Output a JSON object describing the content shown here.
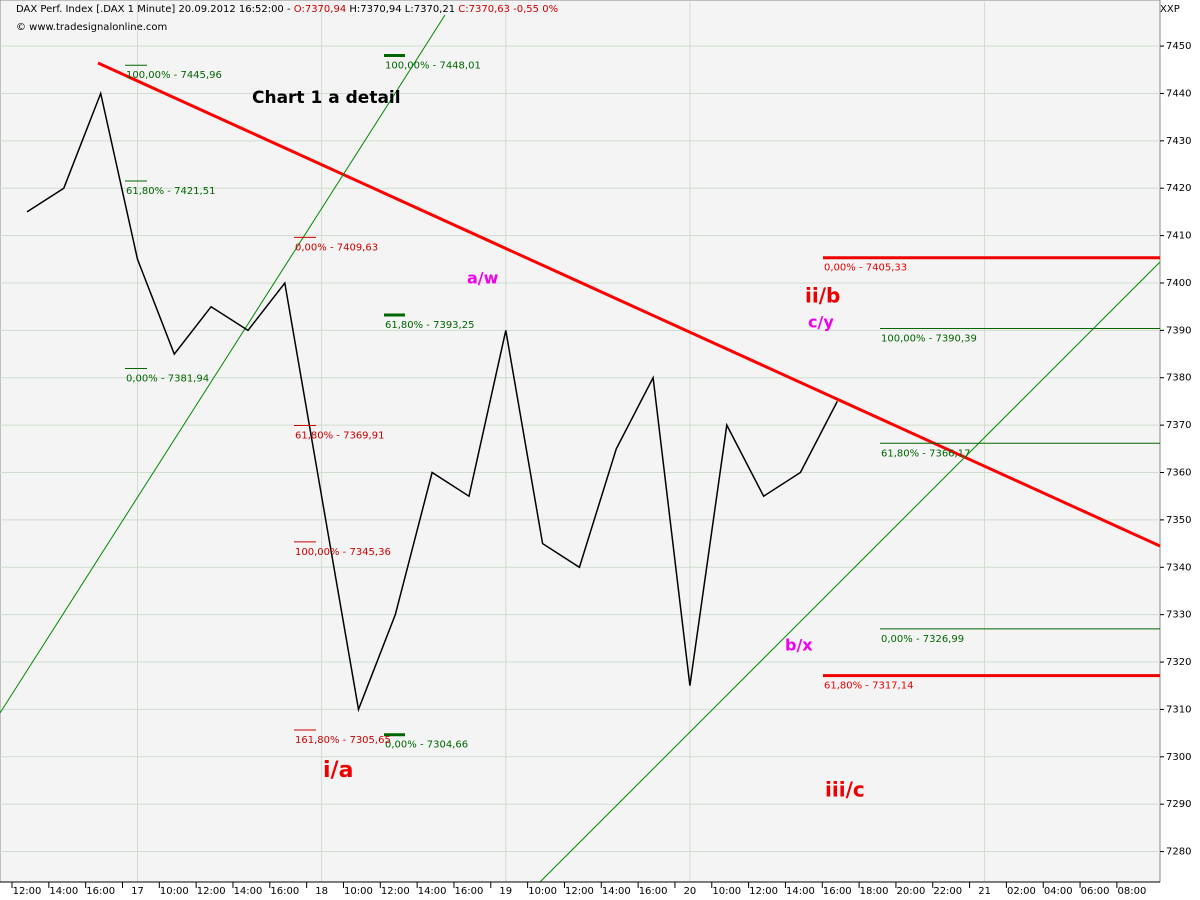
{
  "chart_data": {
    "type": "line",
    "header_parts": [
      {
        "text": "DAX Perf. Index [.DAX  1 Minute] 20.09.2012 16:52:00 - ",
        "color": "#000000"
      },
      {
        "text": "O:7370,94",
        "color": "#cc0000"
      },
      {
        "text": " H:7370,94 L:7370,21 ",
        "color": "#000000"
      },
      {
        "text": "C:7370,63 -0,55 0%",
        "color": "#cc0000"
      }
    ],
    "copyright": "© www.tradesignalonline.com",
    "corner_label": "XXP",
    "title": "Chart 1 a detail",
    "categories": [
      "12:00",
      "14:00",
      "16:00",
      "17",
      "10:00",
      "12:00",
      "14:00",
      "16:00",
      "18",
      "10:00",
      "12:00",
      "14:00",
      "16:00",
      "19",
      "10:00",
      "12:00",
      "14:00",
      "16:00",
      "20",
      "10:00",
      "12:00",
      "14:00",
      "16:00",
      "18:00",
      "20:00",
      "22:00",
      "21",
      "02:00",
      "04:00",
      "06:00",
      "08:00"
    ],
    "series": [
      {
        "name": "DAX",
        "color": "#000000",
        "values": [
          7415,
          7420,
          7440,
          7405,
          7385,
          7395,
          7390,
          7400,
          7355,
          7310,
          7330,
          7360,
          7355,
          7390,
          7345,
          7340,
          7365,
          7380,
          7315,
          7370,
          7355,
          7360,
          7375,
          null,
          null,
          null,
          null,
          null,
          null,
          null,
          null
        ]
      }
    ],
    "ylim": [
      7274,
      7459.3
    ],
    "yticks": [
      7280,
      7290,
      7300,
      7310,
      7320,
      7330,
      7340,
      7350,
      7360,
      7370,
      7380,
      7390,
      7400,
      7410,
      7420,
      7430,
      7440,
      7450
    ],
    "grid": true,
    "levels": [
      {
        "text": "100,00% - 7445,96",
        "value": 7445.96,
        "color": "#006600",
        "style": "tick"
      },
      {
        "text": "61,80% - 7421,51",
        "value": 7421.51,
        "color": "#006600",
        "style": "tick"
      },
      {
        "text": "0,00% - 7381,94",
        "value": 7381.94,
        "color": "#006600",
        "style": "tick"
      },
      {
        "text": "100,00% - 7448,01",
        "value": 7448.01,
        "color": "#006600",
        "style": "bold-tick"
      },
      {
        "text": "61,80% - 7393,25",
        "value": 7393.25,
        "color": "#006600",
        "style": "bold-tick"
      },
      {
        "text": "0,00% - 7304,66",
        "value": 7304.66,
        "color": "#006600",
        "style": "bold-tick"
      },
      {
        "text": "0,00% - 7409,63",
        "value": 7409.63,
        "color": "#cc0000",
        "style": "tick"
      },
      {
        "text": "61,80% - 7369,91",
        "value": 7369.91,
        "color": "#cc0000",
        "style": "tick"
      },
      {
        "text": "100,00% - 7345,36",
        "value": 7345.36,
        "color": "#cc0000",
        "style": "tick"
      },
      {
        "text": "161,80% - 7305,65",
        "value": 7305.65,
        "color": "#cc0000",
        "style": "tick"
      },
      {
        "text": "0,00% - 7405,33",
        "value": 7405.33,
        "color": "#ee0000",
        "style": "thick"
      },
      {
        "text": "61,80% - 7317,14",
        "value": 7317.14,
        "color": "#ee0000",
        "style": "thick"
      },
      {
        "text": "100,00% - 7390,39",
        "value": 7390.39,
        "color": "#006600",
        "style": "thin"
      },
      {
        "text": "61,80% - 7366,17",
        "value": 7366.17,
        "color": "#006600",
        "style": "thin"
      },
      {
        "text": "0,00% - 7326,99",
        "value": 7326.99,
        "color": "#006600",
        "style": "thin"
      }
    ],
    "waves": [
      {
        "text": "i/a",
        "color": "#ee0000"
      },
      {
        "text": "a/w",
        "color": "#ee00ee"
      },
      {
        "text": "ii/b",
        "color": "#ee0000"
      },
      {
        "text": "c/y",
        "color": "#ee00ee"
      },
      {
        "text": "b/x",
        "color": "#ee00ee"
      },
      {
        "text": "iii/c",
        "color": "#ee0000"
      }
    ]
  }
}
